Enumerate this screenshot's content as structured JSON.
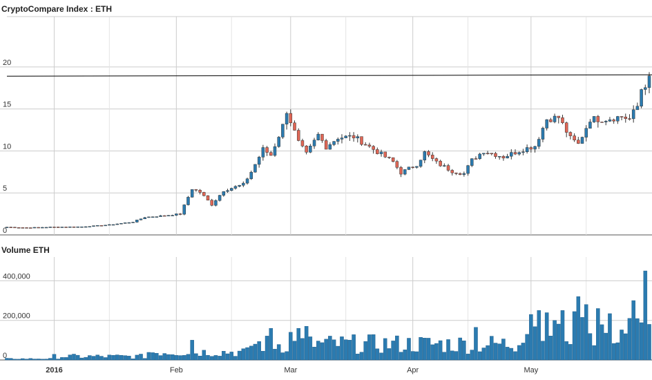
{
  "chart_data": [
    {
      "type": "candlestick",
      "title": "CryptoCompare Index : ETH",
      "y_ticks": [
        "0",
        "5",
        "10",
        "15",
        "20"
      ],
      "ylim": [
        0,
        26
      ],
      "x_range": [
        "2015-12-20",
        "2016-05-31"
      ],
      "reference_line": 18.9,
      "grid": true,
      "colors": {
        "up": "#2b7bb0",
        "down": "#e06655",
        "grid": "#cccccc",
        "reference": "#000000"
      },
      "anchors": [
        [
          "2015-12-20",
          0.93
        ],
        [
          "2015-12-25",
          0.86
        ],
        [
          "2015-12-31",
          0.93
        ],
        [
          "2016-01-08",
          0.97
        ],
        [
          "2016-01-15",
          1.2
        ],
        [
          "2016-01-21",
          1.55
        ],
        [
          "2016-01-24",
          2.1
        ],
        [
          "2016-01-29",
          2.3
        ],
        [
          "2016-02-02",
          2.5
        ],
        [
          "2016-02-05",
          5.5
        ],
        [
          "2016-02-07",
          5.1
        ],
        [
          "2016-02-10",
          3.6
        ],
        [
          "2016-02-13",
          5.3
        ],
        [
          "2016-02-18",
          6.0
        ],
        [
          "2016-02-20",
          7.5
        ],
        [
          "2016-02-23",
          10.2
        ],
        [
          "2016-02-25",
          9.5
        ],
        [
          "2016-02-28",
          13.0
        ],
        [
          "2016-02-29",
          14.8
        ],
        [
          "2016-03-03",
          11.0
        ],
        [
          "2016-03-05",
          9.6
        ],
        [
          "2016-03-08",
          11.9
        ],
        [
          "2016-03-10",
          10.5
        ],
        [
          "2016-03-13",
          11.6
        ],
        [
          "2016-03-17",
          11.7
        ],
        [
          "2016-03-20",
          10.8
        ],
        [
          "2016-03-24",
          9.6
        ],
        [
          "2016-03-27",
          8.7
        ],
        [
          "2016-03-29",
          7.4
        ],
        [
          "2016-04-02",
          8.4
        ],
        [
          "2016-04-04",
          9.8
        ],
        [
          "2016-04-07",
          8.6
        ],
        [
          "2016-04-11",
          7.6
        ],
        [
          "2016-04-14",
          7.3
        ],
        [
          "2016-04-16",
          8.9
        ],
        [
          "2016-04-19",
          10.0
        ],
        [
          "2016-04-24",
          9.3
        ],
        [
          "2016-04-29",
          10.2
        ],
        [
          "2016-05-02",
          10.6
        ],
        [
          "2016-05-05",
          13.8
        ],
        [
          "2016-05-08",
          14.0
        ],
        [
          "2016-05-11",
          11.5
        ],
        [
          "2016-05-13",
          10.8
        ],
        [
          "2016-05-16",
          13.8
        ],
        [
          "2016-05-20",
          13.8
        ],
        [
          "2016-05-24",
          14.1
        ],
        [
          "2016-05-26",
          13.8
        ],
        [
          "2016-05-28",
          15.3
        ],
        [
          "2016-05-29",
          17.4
        ],
        [
          "2016-05-31",
          18.5
        ]
      ]
    },
    {
      "type": "bar",
      "title": "Volume ETH",
      "y_ticks": [
        "0",
        "200,000",
        "400,000"
      ],
      "ylim": [
        0,
        520000
      ],
      "grid": true,
      "color": "#2b7bb0",
      "x_ticks": [
        {
          "date": "2016-01-01",
          "label": "2016",
          "bold": true
        },
        {
          "date": "2016-02-01",
          "label": "Feb",
          "bold": false
        },
        {
          "date": "2016-03-01",
          "label": "Mar",
          "bold": false
        },
        {
          "date": "2016-04-01",
          "label": "Apr",
          "bold": false
        },
        {
          "date": "2016-05-01",
          "label": "May",
          "bold": false
        }
      ],
      "spikes": [
        [
          "2016-02-05",
          100000
        ],
        [
          "2016-02-25",
          160000
        ],
        [
          "2016-03-01",
          140000
        ],
        [
          "2016-03-03",
          160000
        ],
        [
          "2016-03-05",
          170000
        ],
        [
          "2016-04-17",
          165000
        ],
        [
          "2016-05-01",
          230000
        ],
        [
          "2016-05-03",
          250000
        ],
        [
          "2016-05-07",
          200000
        ],
        [
          "2016-05-09",
          250000
        ],
        [
          "2016-05-13",
          320000
        ],
        [
          "2016-05-15",
          280000
        ],
        [
          "2016-05-18",
          260000
        ],
        [
          "2016-05-27",
          300000
        ],
        [
          "2016-05-30",
          450000
        ],
        [
          "2016-05-31",
          180000
        ]
      ]
    }
  ]
}
